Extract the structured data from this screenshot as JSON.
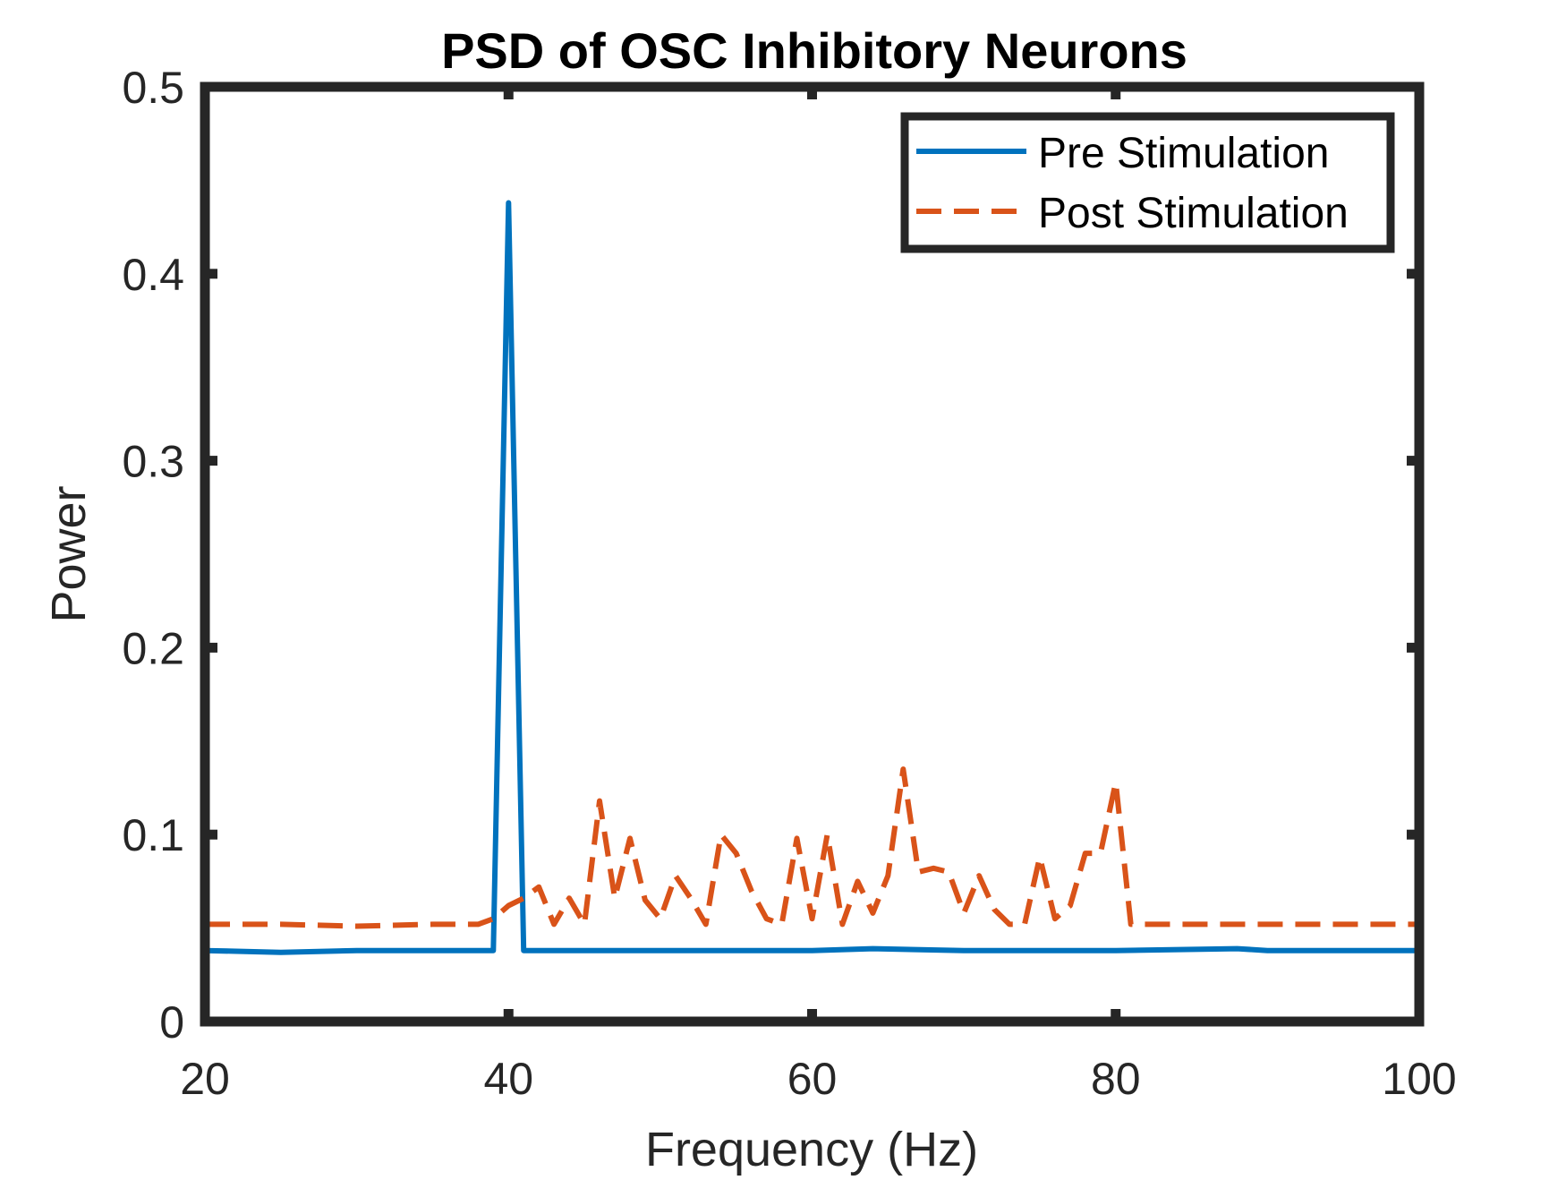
{
  "chart_data": {
    "type": "line",
    "title": "PSD of OSC Inhibitory Neurons",
    "xlabel": "Frequency (Hz)",
    "ylabel": "Power",
    "xlim": [
      20,
      100
    ],
    "ylim": [
      0,
      0.5
    ],
    "xticks": [
      20,
      40,
      60,
      80,
      100
    ],
    "xtick_labels": [
      "20",
      "40",
      "60",
      "80",
      "100"
    ],
    "yticks": [
      0,
      0.1,
      0.2,
      0.3,
      0.4,
      0.5
    ],
    "ytick_labels": [
      "0",
      "0.1",
      "0.2",
      "0.3",
      "0.4",
      "0.5"
    ],
    "grid": false,
    "legend_position": "top-right",
    "series": [
      {
        "name": "Pre Stimulation",
        "color": "#0072BD",
        "line_style": "solid",
        "x": [
          20,
          25,
          30,
          35,
          38,
          39,
          40,
          41,
          42,
          50,
          60,
          64,
          70,
          80,
          88,
          90,
          100
        ],
        "y": [
          0.038,
          0.037,
          0.038,
          0.038,
          0.038,
          0.038,
          0.438,
          0.038,
          0.038,
          0.038,
          0.038,
          0.039,
          0.038,
          0.038,
          0.039,
          0.038,
          0.038
        ]
      },
      {
        "name": "Post Stimulation",
        "color": "#D95319",
        "line_style": "dashed",
        "x": [
          20,
          25,
          30,
          35,
          38,
          39,
          40,
          41,
          42,
          43,
          44,
          45,
          46,
          47,
          48,
          49,
          50,
          51,
          52,
          53,
          54,
          55,
          56,
          57,
          58,
          59,
          60,
          61,
          62,
          63,
          64,
          65,
          66,
          67,
          68,
          69,
          70,
          71,
          72,
          73,
          74,
          75,
          76,
          77,
          78,
          79,
          80,
          81,
          82,
          85,
          90,
          95,
          100
        ],
        "y": [
          0.052,
          0.052,
          0.051,
          0.052,
          0.052,
          0.055,
          0.062,
          0.066,
          0.072,
          0.052,
          0.066,
          0.052,
          0.118,
          0.066,
          0.098,
          0.065,
          0.055,
          0.078,
          0.066,
          0.052,
          0.1,
          0.09,
          0.07,
          0.055,
          0.052,
          0.098,
          0.055,
          0.1,
          0.052,
          0.075,
          0.058,
          0.078,
          0.135,
          0.08,
          0.082,
          0.08,
          0.058,
          0.078,
          0.06,
          0.052,
          0.052,
          0.088,
          0.055,
          0.062,
          0.09,
          0.09,
          0.128,
          0.052,
          0.052,
          0.052,
          0.052,
          0.052,
          0.052
        ]
      }
    ]
  }
}
